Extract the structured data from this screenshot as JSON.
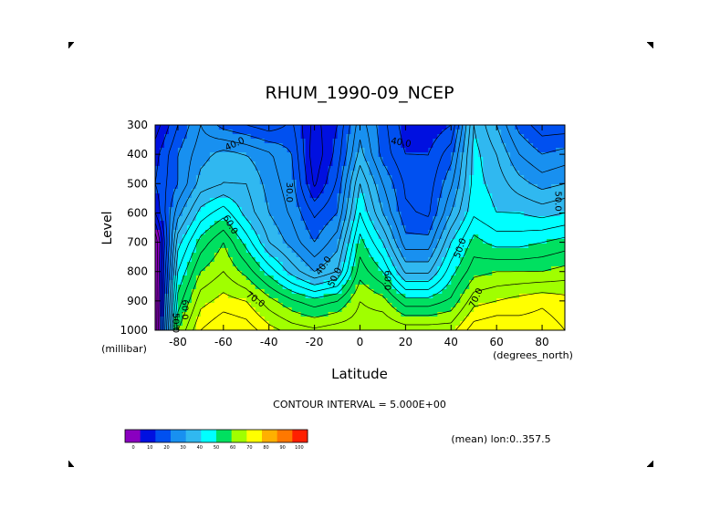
{
  "chart_data": {
    "type": "heatmap",
    "title": "RHUM_1990-09_NCEP",
    "xlabel": "Latitude",
    "ylabel": "Level",
    "x_units_label": "(degrees_north)",
    "y_units_label": "(millibar)",
    "xlim": [
      -90,
      90
    ],
    "ylim": [
      1000,
      300
    ],
    "x_ticks": [
      -80,
      -60,
      -40,
      -20,
      0,
      20,
      40,
      60,
      80
    ],
    "y_ticks": [
      300,
      400,
      500,
      600,
      700,
      800,
      900,
      1000
    ],
    "contour_interval_text": "CONTOUR INTERVAL = 5.000E+00",
    "footnote": "(mean) lon:0..357.5",
    "colorbar": {
      "ticks": [
        0,
        10,
        20,
        30,
        40,
        50,
        60,
        70,
        80,
        90,
        100
      ],
      "colors": [
        "#8a00c0",
        "#0010e0",
        "#0050f0",
        "#1890f0",
        "#30b8f0",
        "#00ffff",
        "#00e060",
        "#a0ff00",
        "#ffff00",
        "#ffb000",
        "#ff7800",
        "#ff2000"
      ]
    },
    "contour_labels": [
      {
        "text": "40.0",
        "lat": -55,
        "lev": 365,
        "angle": -25
      },
      {
        "text": "30.0",
        "lat": -31,
        "lev": 530,
        "angle": 90
      },
      {
        "text": "40.0",
        "lat": 18,
        "lev": 360,
        "angle": 10
      },
      {
        "text": "50.0",
        "lat": 87,
        "lev": 560,
        "angle": 90
      },
      {
        "text": "60.0",
        "lat": -57,
        "lev": 640,
        "angle": 60
      },
      {
        "text": "40.0",
        "lat": -16,
        "lev": 780,
        "angle": -55
      },
      {
        "text": "50.0",
        "lat": -11,
        "lev": 820,
        "angle": -65
      },
      {
        "text": "60.0",
        "lat": 12,
        "lev": 830,
        "angle": 90
      },
      {
        "text": "50.0",
        "lat": 44,
        "lev": 720,
        "angle": -70
      },
      {
        "text": "70.0",
        "lat": -46,
        "lev": 895,
        "angle": 35
      },
      {
        "text": "70.0",
        "lat": 51,
        "lev": 890,
        "angle": -65
      },
      {
        "text": "60.0",
        "lat": -77,
        "lev": 930,
        "angle": 90
      },
      {
        "text": "50.0",
        "lat": -81,
        "lev": 975,
        "angle": 90
      }
    ],
    "grid_lat": [
      -90,
      -80,
      -70,
      -60,
      -50,
      -40,
      -30,
      -20,
      -10,
      0,
      10,
      20,
      30,
      40,
      50,
      60,
      70,
      80,
      90
    ],
    "grid_lev": [
      300,
      400,
      500,
      600,
      700,
      800,
      900,
      1000
    ],
    "values": [
      [
        12,
        25,
        35,
        28,
        25,
        22,
        26,
        13,
        20,
        38,
        27,
        17,
        16,
        20,
        50,
        40,
        28,
        22,
        22
      ],
      [
        18,
        30,
        38,
        42,
        40,
        36,
        30,
        11,
        22,
        42,
        28,
        20,
        20,
        28,
        52,
        45,
        35,
        30,
        32
      ],
      [
        20,
        30,
        42,
        45,
        45,
        38,
        32,
        14,
        26,
        50,
        35,
        24,
        22,
        34,
        52,
        48,
        42,
        38,
        40
      ],
      [
        15,
        38,
        52,
        58,
        48,
        40,
        34,
        24,
        30,
        55,
        40,
        26,
        24,
        40,
        54,
        50,
        50,
        48,
        50
      ],
      [
        0,
        48,
        62,
        70,
        58,
        45,
        38,
        30,
        38,
        62,
        50,
        32,
        32,
        50,
        62,
        58,
        58,
        60,
        62
      ],
      [
        0,
        55,
        70,
        75,
        68,
        58,
        48,
        40,
        45,
        68,
        60,
        44,
        44,
        58,
        68,
        70,
        70,
        70,
        72
      ],
      [
        0,
        62,
        78,
        82,
        80,
        72,
        66,
        62,
        65,
        75,
        72,
        62,
        62,
        66,
        78,
        80,
        82,
        84,
        82
      ],
      [
        0,
        70,
        85,
        90,
        88,
        82,
        78,
        76,
        78,
        78,
        80,
        78,
        78,
        78,
        88,
        90,
        88,
        88,
        85
      ]
    ]
  },
  "corner_marks": true
}
